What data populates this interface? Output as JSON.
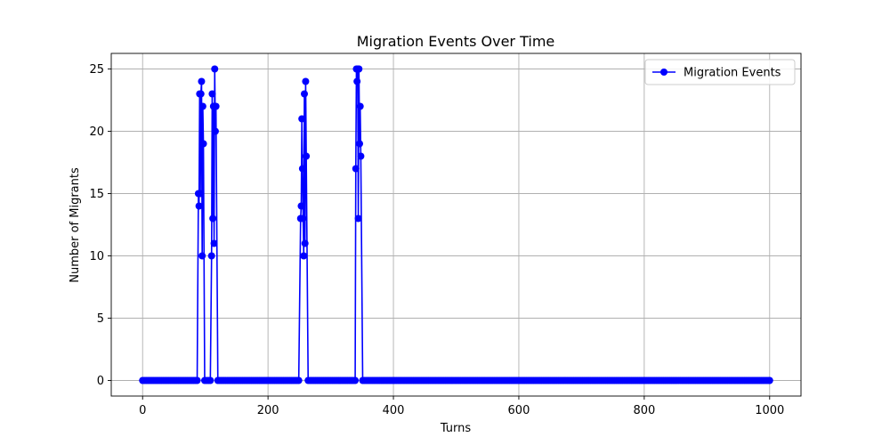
{
  "chart_data": {
    "type": "line",
    "title": "Migration Events Over Time",
    "xlabel": "Turns",
    "ylabel": "Number of Migrants",
    "xlim": [
      -50,
      1050
    ],
    "ylim": [
      -1.25,
      26.25
    ],
    "xticks": [
      0,
      200,
      400,
      600,
      800,
      1000
    ],
    "yticks": [
      0,
      5,
      10,
      15,
      20,
      25
    ],
    "grid": true,
    "legend_position": "top-right",
    "series": [
      {
        "name": "Migration Events",
        "color": "#0000ff",
        "marker": "circle",
        "baseline": 0,
        "x_start": 0,
        "x_end": 1000,
        "x_step": 3,
        "events": [
          [
            89,
            15
          ],
          [
            90,
            14
          ],
          [
            91,
            23
          ],
          [
            92,
            15
          ],
          [
            93,
            23
          ],
          [
            94,
            24
          ],
          [
            95,
            10
          ],
          [
            96,
            22
          ],
          [
            97,
            19
          ],
          [
            110,
            10
          ],
          [
            111,
            23
          ],
          [
            112,
            13
          ],
          [
            113,
            22
          ],
          [
            114,
            11
          ],
          [
            115,
            25
          ],
          [
            116,
            20
          ],
          [
            117,
            22
          ],
          [
            252,
            13
          ],
          [
            253,
            14
          ],
          [
            254,
            21
          ],
          [
            255,
            17
          ],
          [
            256,
            13
          ],
          [
            257,
            10
          ],
          [
            258,
            23
          ],
          [
            259,
            11
          ],
          [
            260,
            24
          ],
          [
            261,
            18
          ],
          [
            340,
            17
          ],
          [
            341,
            25
          ],
          [
            342,
            24
          ],
          [
            343,
            25
          ],
          [
            344,
            13
          ],
          [
            345,
            25
          ],
          [
            346,
            19
          ],
          [
            347,
            22
          ],
          [
            348,
            18
          ]
        ]
      }
    ]
  }
}
